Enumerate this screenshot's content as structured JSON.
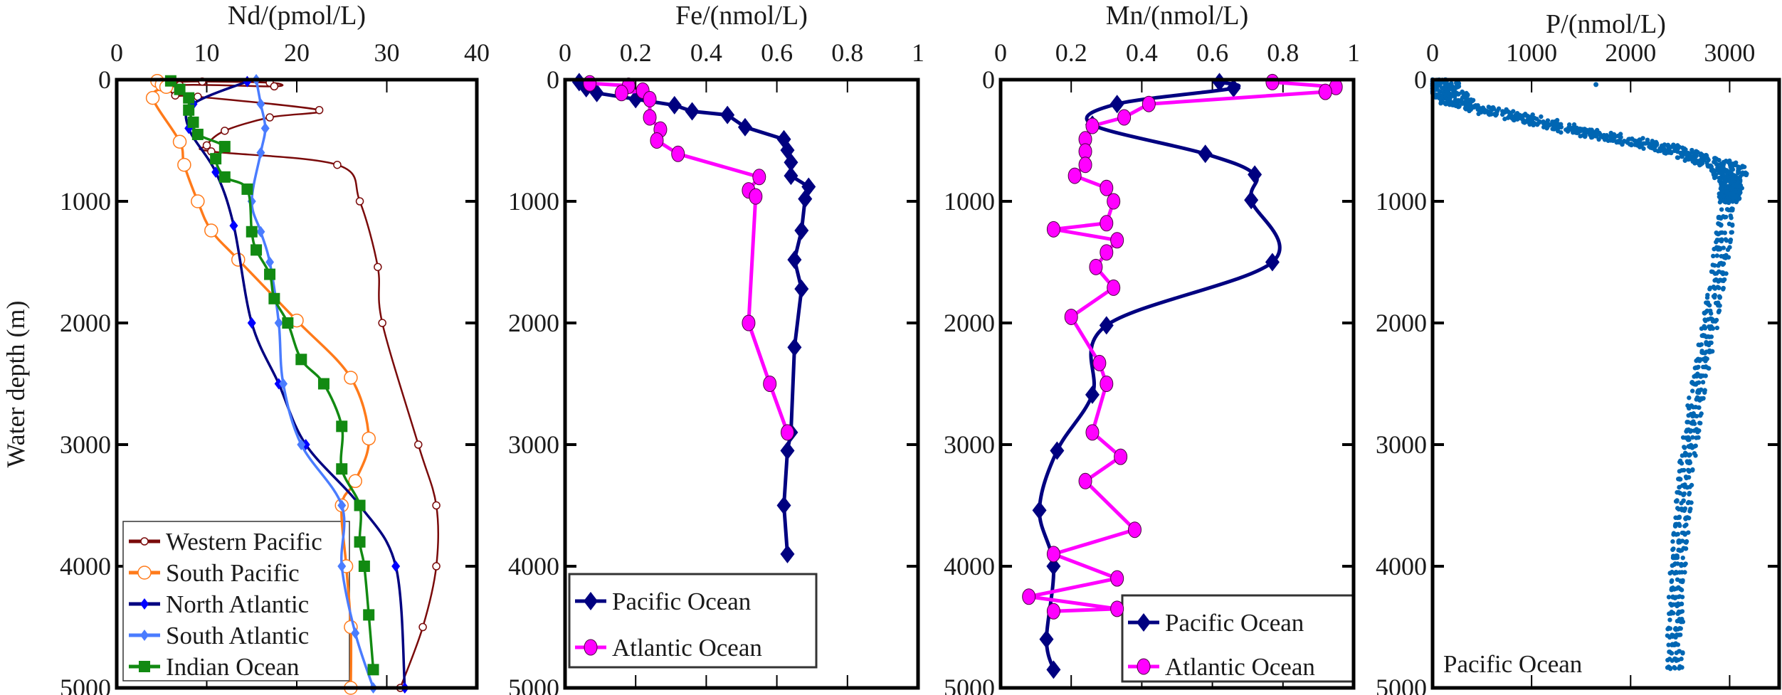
{
  "ylabel": "Water depth (m)",
  "chart_data": [
    {
      "type": "line",
      "title": "Nd/(pmol/L)",
      "xlabel": "Nd/(pmol/L)",
      "ylabel": "Water depth (m)",
      "xlim": [
        0,
        40
      ],
      "xticks": [
        "0",
        "10",
        "20",
        "30",
        "40"
      ],
      "xtick_values": [
        0,
        10,
        20,
        30,
        40
      ],
      "ylim": [
        0,
        5000
      ],
      "yticks": [
        "0",
        "1000",
        "2000",
        "3000",
        "4000",
        "5000"
      ],
      "ytick_values": [
        0,
        1000,
        2000,
        3000,
        4000,
        5000
      ],
      "legend_placement": "bottom-left",
      "series": [
        {
          "name": "Western Pacific",
          "color": "#7a0a0a",
          "marker": "open-circle-small",
          "points": [
            [
              6,
              20
            ],
            [
              9.5,
              15
            ],
            [
              17,
              25
            ],
            [
              17.5,
              55
            ],
            [
              7,
              45
            ],
            [
              6.5,
              130
            ],
            [
              9,
              140
            ],
            [
              22.5,
              250
            ],
            [
              17,
              310
            ],
            [
              12,
              420
            ],
            [
              10,
              540
            ],
            [
              10.5,
              590
            ],
            [
              24.5,
              700
            ],
            [
              27,
              1000
            ],
            [
              29,
              1540
            ],
            [
              29.5,
              2000
            ],
            [
              33.5,
              3000
            ],
            [
              35.5,
              3500
            ],
            [
              35.5,
              4000
            ],
            [
              34,
              4500
            ],
            [
              31.5,
              5000
            ]
          ]
        },
        {
          "name": "South Pacific",
          "color": "#ff7a1a",
          "marker": "open-circle",
          "points": [
            [
              4.5,
              10
            ],
            [
              5,
              40
            ],
            [
              5.5,
              60
            ],
            [
              4,
              150
            ],
            [
              7,
              510
            ],
            [
              7.5,
              700
            ],
            [
              9,
              1000
            ],
            [
              10.5,
              1240
            ],
            [
              13.5,
              1480
            ],
            [
              20,
              1980
            ],
            [
              26,
              2450
            ],
            [
              28,
              2950
            ],
            [
              26.5,
              3300
            ],
            [
              25,
              3500
            ],
            [
              25.5,
              4000
            ],
            [
              26,
              4500
            ],
            [
              26,
              5000
            ]
          ]
        },
        {
          "name": "North Atlantic",
          "color": "#000080",
          "marker": "diamond-blue",
          "points": [
            [
              14.5,
              15
            ],
            [
              8.5,
              200
            ],
            [
              8,
              400
            ],
            [
              11,
              760
            ],
            [
              13,
              1200
            ],
            [
              15,
              2000
            ],
            [
              18,
              2500
            ],
            [
              21,
              3000
            ],
            [
              27,
              3500
            ],
            [
              31,
              4000
            ],
            [
              32,
              5000
            ]
          ]
        },
        {
          "name": "South Atlantic",
          "color": "#4a7cff",
          "marker": "diamond-light",
          "points": [
            [
              15.5,
              0
            ],
            [
              16,
              200
            ],
            [
              16.5,
              400
            ],
            [
              16,
              600
            ],
            [
              15,
              1000
            ],
            [
              16,
              1250
            ],
            [
              17,
              1500
            ],
            [
              18,
              2000
            ],
            [
              18.5,
              2500
            ],
            [
              20.5,
              3000
            ],
            [
              25,
              3500
            ],
            [
              25,
              4000
            ],
            [
              26.5,
              4550
            ],
            [
              28.5,
              5000
            ]
          ]
        },
        {
          "name": "Indian Ocean",
          "color": "#128a12",
          "marker": "square",
          "points": [
            [
              6,
              10
            ],
            [
              7,
              80
            ],
            [
              8,
              150
            ],
            [
              8,
              250
            ],
            [
              8.5,
              350
            ],
            [
              9,
              450
            ],
            [
              12,
              550
            ],
            [
              11,
              650
            ],
            [
              12,
              800
            ],
            [
              14.5,
              900
            ],
            [
              15,
              1250
            ],
            [
              15.5,
              1400
            ],
            [
              17,
              1600
            ],
            [
              17.5,
              1800
            ],
            [
              19,
              2000
            ],
            [
              20.5,
              2300
            ],
            [
              23,
              2500
            ],
            [
              25,
              2850
            ],
            [
              25,
              3200
            ],
            [
              27,
              3500
            ],
            [
              27,
              3800
            ],
            [
              27.5,
              4000
            ],
            [
              28,
              4400
            ],
            [
              28.5,
              4850
            ]
          ]
        }
      ]
    },
    {
      "type": "line",
      "title": "Fe/(nmol/L)",
      "xlabel": "Fe/(nmol/L)",
      "xlim": [
        0,
        1
      ],
      "xticks": [
        "0",
        "0.2",
        "0.4",
        "0.6",
        "0.8",
        "1"
      ],
      "xtick_values": [
        0,
        0.2,
        0.4,
        0.6,
        0.8,
        1
      ],
      "ylim": [
        0,
        5000
      ],
      "yticks": [
        "0",
        "1000",
        "2000",
        "3000",
        "4000",
        "5000"
      ],
      "ytick_values": [
        0,
        1000,
        2000,
        3000,
        4000,
        5000
      ],
      "legend_placement": "bottom-left",
      "series": [
        {
          "name": "Pacific Ocean",
          "color": "#000080",
          "marker": "diamond",
          "points": [
            [
              0.04,
              20
            ],
            [
              0.06,
              70
            ],
            [
              0.09,
              110
            ],
            [
              0.2,
              160
            ],
            [
              0.31,
              210
            ],
            [
              0.36,
              260
            ],
            [
              0.46,
              290
            ],
            [
              0.51,
              390
            ],
            [
              0.62,
              490
            ],
            [
              0.63,
              580
            ],
            [
              0.64,
              680
            ],
            [
              0.64,
              790
            ],
            [
              0.69,
              880
            ],
            [
              0.68,
              980
            ],
            [
              0.67,
              1240
            ],
            [
              0.65,
              1480
            ],
            [
              0.67,
              1720
            ],
            [
              0.65,
              2200
            ],
            [
              0.64,
              2900
            ],
            [
              0.63,
              3050
            ],
            [
              0.62,
              3500
            ],
            [
              0.63,
              3900
            ]
          ]
        },
        {
          "name": "Atlantic Ocean",
          "color": "#ff00ff",
          "marker": "circle",
          "points": [
            [
              0.07,
              30
            ],
            [
              0.18,
              50
            ],
            [
              0.16,
              110
            ],
            [
              0.22,
              90
            ],
            [
              0.24,
              160
            ],
            [
              0.24,
              310
            ],
            [
              0.27,
              410
            ],
            [
              0.26,
              500
            ],
            [
              0.32,
              610
            ],
            [
              0.55,
              800
            ],
            [
              0.52,
              910
            ],
            [
              0.54,
              960
            ],
            [
              0.52,
              2000
            ],
            [
              0.58,
              2500
            ],
            [
              0.63,
              2900
            ]
          ]
        }
      ]
    },
    {
      "type": "line",
      "title": "Mn/(nmol/L)",
      "xlabel": "Mn/(nmol/L)",
      "xlim": [
        0,
        1
      ],
      "xticks": [
        "0",
        "0.2",
        "0.4",
        "0.6",
        "0.8",
        "1"
      ],
      "xtick_values": [
        0,
        0.2,
        0.4,
        0.6,
        0.8,
        1
      ],
      "ylim": [
        0,
        5000
      ],
      "yticks": [
        "0",
        "1000",
        "2000",
        "3000",
        "4000",
        "5000"
      ],
      "ytick_values": [
        0,
        1000,
        2000,
        3000,
        4000,
        5000
      ],
      "legend_placement": "bottom-right",
      "series": [
        {
          "name": "Pacific Ocean",
          "color": "#000080",
          "marker": "diamond",
          "points": [
            [
              0.62,
              20
            ],
            [
              0.66,
              70
            ],
            [
              0.33,
              200
            ],
            [
              0.26,
              370
            ],
            [
              0.58,
              610
            ],
            [
              0.72,
              780
            ],
            [
              0.71,
              990
            ],
            [
              0.77,
              1500
            ],
            [
              0.3,
              2020
            ],
            [
              0.26,
              2590
            ],
            [
              0.16,
              3050
            ],
            [
              0.11,
              3540
            ],
            [
              0.15,
              4000
            ],
            [
              0.13,
              4600
            ],
            [
              0.15,
              4850
            ]
          ]
        },
        {
          "name": "Atlantic Ocean",
          "color": "#ff00ff",
          "marker": "circle",
          "points": [
            [
              0.77,
              20
            ],
            [
              0.95,
              60
            ],
            [
              0.92,
              100
            ],
            [
              0.42,
              200
            ],
            [
              0.35,
              310
            ],
            [
              0.26,
              380
            ],
            [
              0.24,
              490
            ],
            [
              0.24,
              590
            ],
            [
              0.24,
              700
            ],
            [
              0.21,
              790
            ],
            [
              0.3,
              890
            ],
            [
              0.32,
              1000
            ],
            [
              0.3,
              1180
            ],
            [
              0.15,
              1230
            ],
            [
              0.33,
              1320
            ],
            [
              0.3,
              1420
            ],
            [
              0.27,
              1540
            ],
            [
              0.32,
              1710
            ],
            [
              0.2,
              1950
            ],
            [
              0.28,
              2330
            ],
            [
              0.3,
              2500
            ],
            [
              0.26,
              2900
            ],
            [
              0.34,
              3100
            ],
            [
              0.24,
              3300
            ],
            [
              0.38,
              3700
            ],
            [
              0.15,
              3900
            ],
            [
              0.33,
              4100
            ],
            [
              0.08,
              4250
            ],
            [
              0.33,
              4350
            ],
            [
              0.15,
              4370
            ]
          ]
        }
      ]
    },
    {
      "type": "scatter",
      "title": "P/(nmol/L)",
      "xlabel": "P/(nmol/L)",
      "xlim": [
        0,
        3500
      ],
      "xticks": [
        "0",
        "1000",
        "2000",
        "3000"
      ],
      "xtick_values": [
        0,
        1000,
        2000,
        3000
      ],
      "ylim": [
        0,
        5000
      ],
      "yticks": [
        "0",
        "1000",
        "2000",
        "3000",
        "4000",
        "5000"
      ],
      "ytick_values": [
        0,
        1000,
        2000,
        3000,
        4000,
        5000
      ],
      "annotation": "Pacific Ocean",
      "series": [
        {
          "name": "Pacific Ocean",
          "color": "#0066b3",
          "marker": "dot",
          "profile_depth_P": [
            [
              0,
              60
            ],
            [
              100,
              150
            ],
            [
              200,
              280
            ],
            [
              260,
              620
            ],
            [
              420,
              1450
            ],
            [
              550,
              2290
            ],
            [
              710,
              2960
            ],
            [
              880,
              3020
            ],
            [
              1000,
              2990
            ],
            [
              1230,
              2950
            ],
            [
              1630,
              2880
            ],
            [
              2060,
              2790
            ],
            [
              2480,
              2690
            ],
            [
              2880,
              2620
            ],
            [
              3270,
              2550
            ],
            [
              3660,
              2520
            ],
            [
              4080,
              2470
            ],
            [
              4470,
              2450
            ],
            [
              4880,
              2450
            ]
          ],
          "outliers": [
            [
              1650,
              40
            ]
          ]
        }
      ]
    }
  ]
}
